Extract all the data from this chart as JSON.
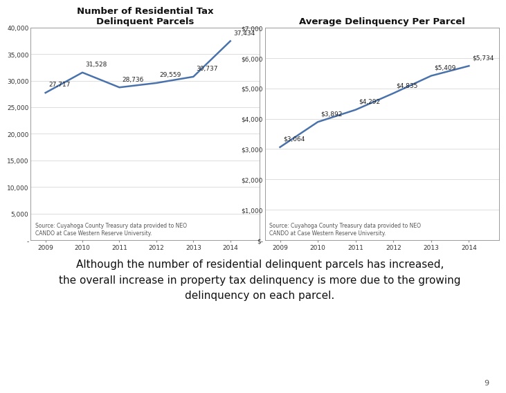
{
  "chart1": {
    "title": "Number of Residential Tax\nDelinquent Parcels",
    "years": [
      2009,
      2010,
      2011,
      2012,
      2013,
      2014
    ],
    "values": [
      27717,
      31528,
      28736,
      29559,
      30737,
      37434
    ],
    "labels": [
      "27,717",
      "31,528",
      "28,736",
      "29,559",
      "30,737",
      "37,434"
    ],
    "ylim": [
      0,
      40000
    ],
    "yticks": [
      0,
      5000,
      10000,
      15000,
      20000,
      25000,
      30000,
      35000,
      40000
    ],
    "ytick_labels": [
      "-",
      "5,000",
      "10,000",
      "15,000",
      "20,000",
      "25,000",
      "30,000",
      "35,000",
      "40,000"
    ],
    "source": "Source: Cuyahoga County Treasury data provided to NEO\nCANDO at Case Western Reserve University."
  },
  "chart2": {
    "title": "Average Delinquency Per Parcel",
    "years": [
      2009,
      2010,
      2011,
      2012,
      2013,
      2014
    ],
    "values": [
      3064,
      3892,
      4292,
      4835,
      5409,
      5734
    ],
    "labels": [
      "$3,064",
      "$3,892",
      "$4,292",
      "$4,835",
      "$5,409",
      "$5,734"
    ],
    "ylim": [
      0,
      7000
    ],
    "yticks": [
      0,
      1000,
      2000,
      3000,
      4000,
      5000,
      6000,
      7000
    ],
    "ytick_labels": [
      "$-",
      "$1,000",
      "$2,000",
      "$3,000",
      "$4,000",
      "$5,000",
      "$6,000",
      "$7,000"
    ],
    "source": "Source: Cuyahoga County Treasury data provided to NEO\nCANDO at Case Western Reserve University."
  },
  "line_color": "#4a72aa",
  "line_width": 1.8,
  "grid_color": "#d0d0d0",
  "box_color": "#999999",
  "bg_color": "#ffffff",
  "panel_bg": "#ffffff",
  "caption": "Although the number of residential delinquent parcels has increased,\nthe overall increase in property tax delinquency is more due to the growing\ndelinquency on each parcel.",
  "page_number": "9",
  "title_fontsize": 9.5,
  "label_fontsize": 6.5,
  "tick_fontsize": 6.5,
  "source_fontsize": 5.5,
  "caption_fontsize": 11
}
